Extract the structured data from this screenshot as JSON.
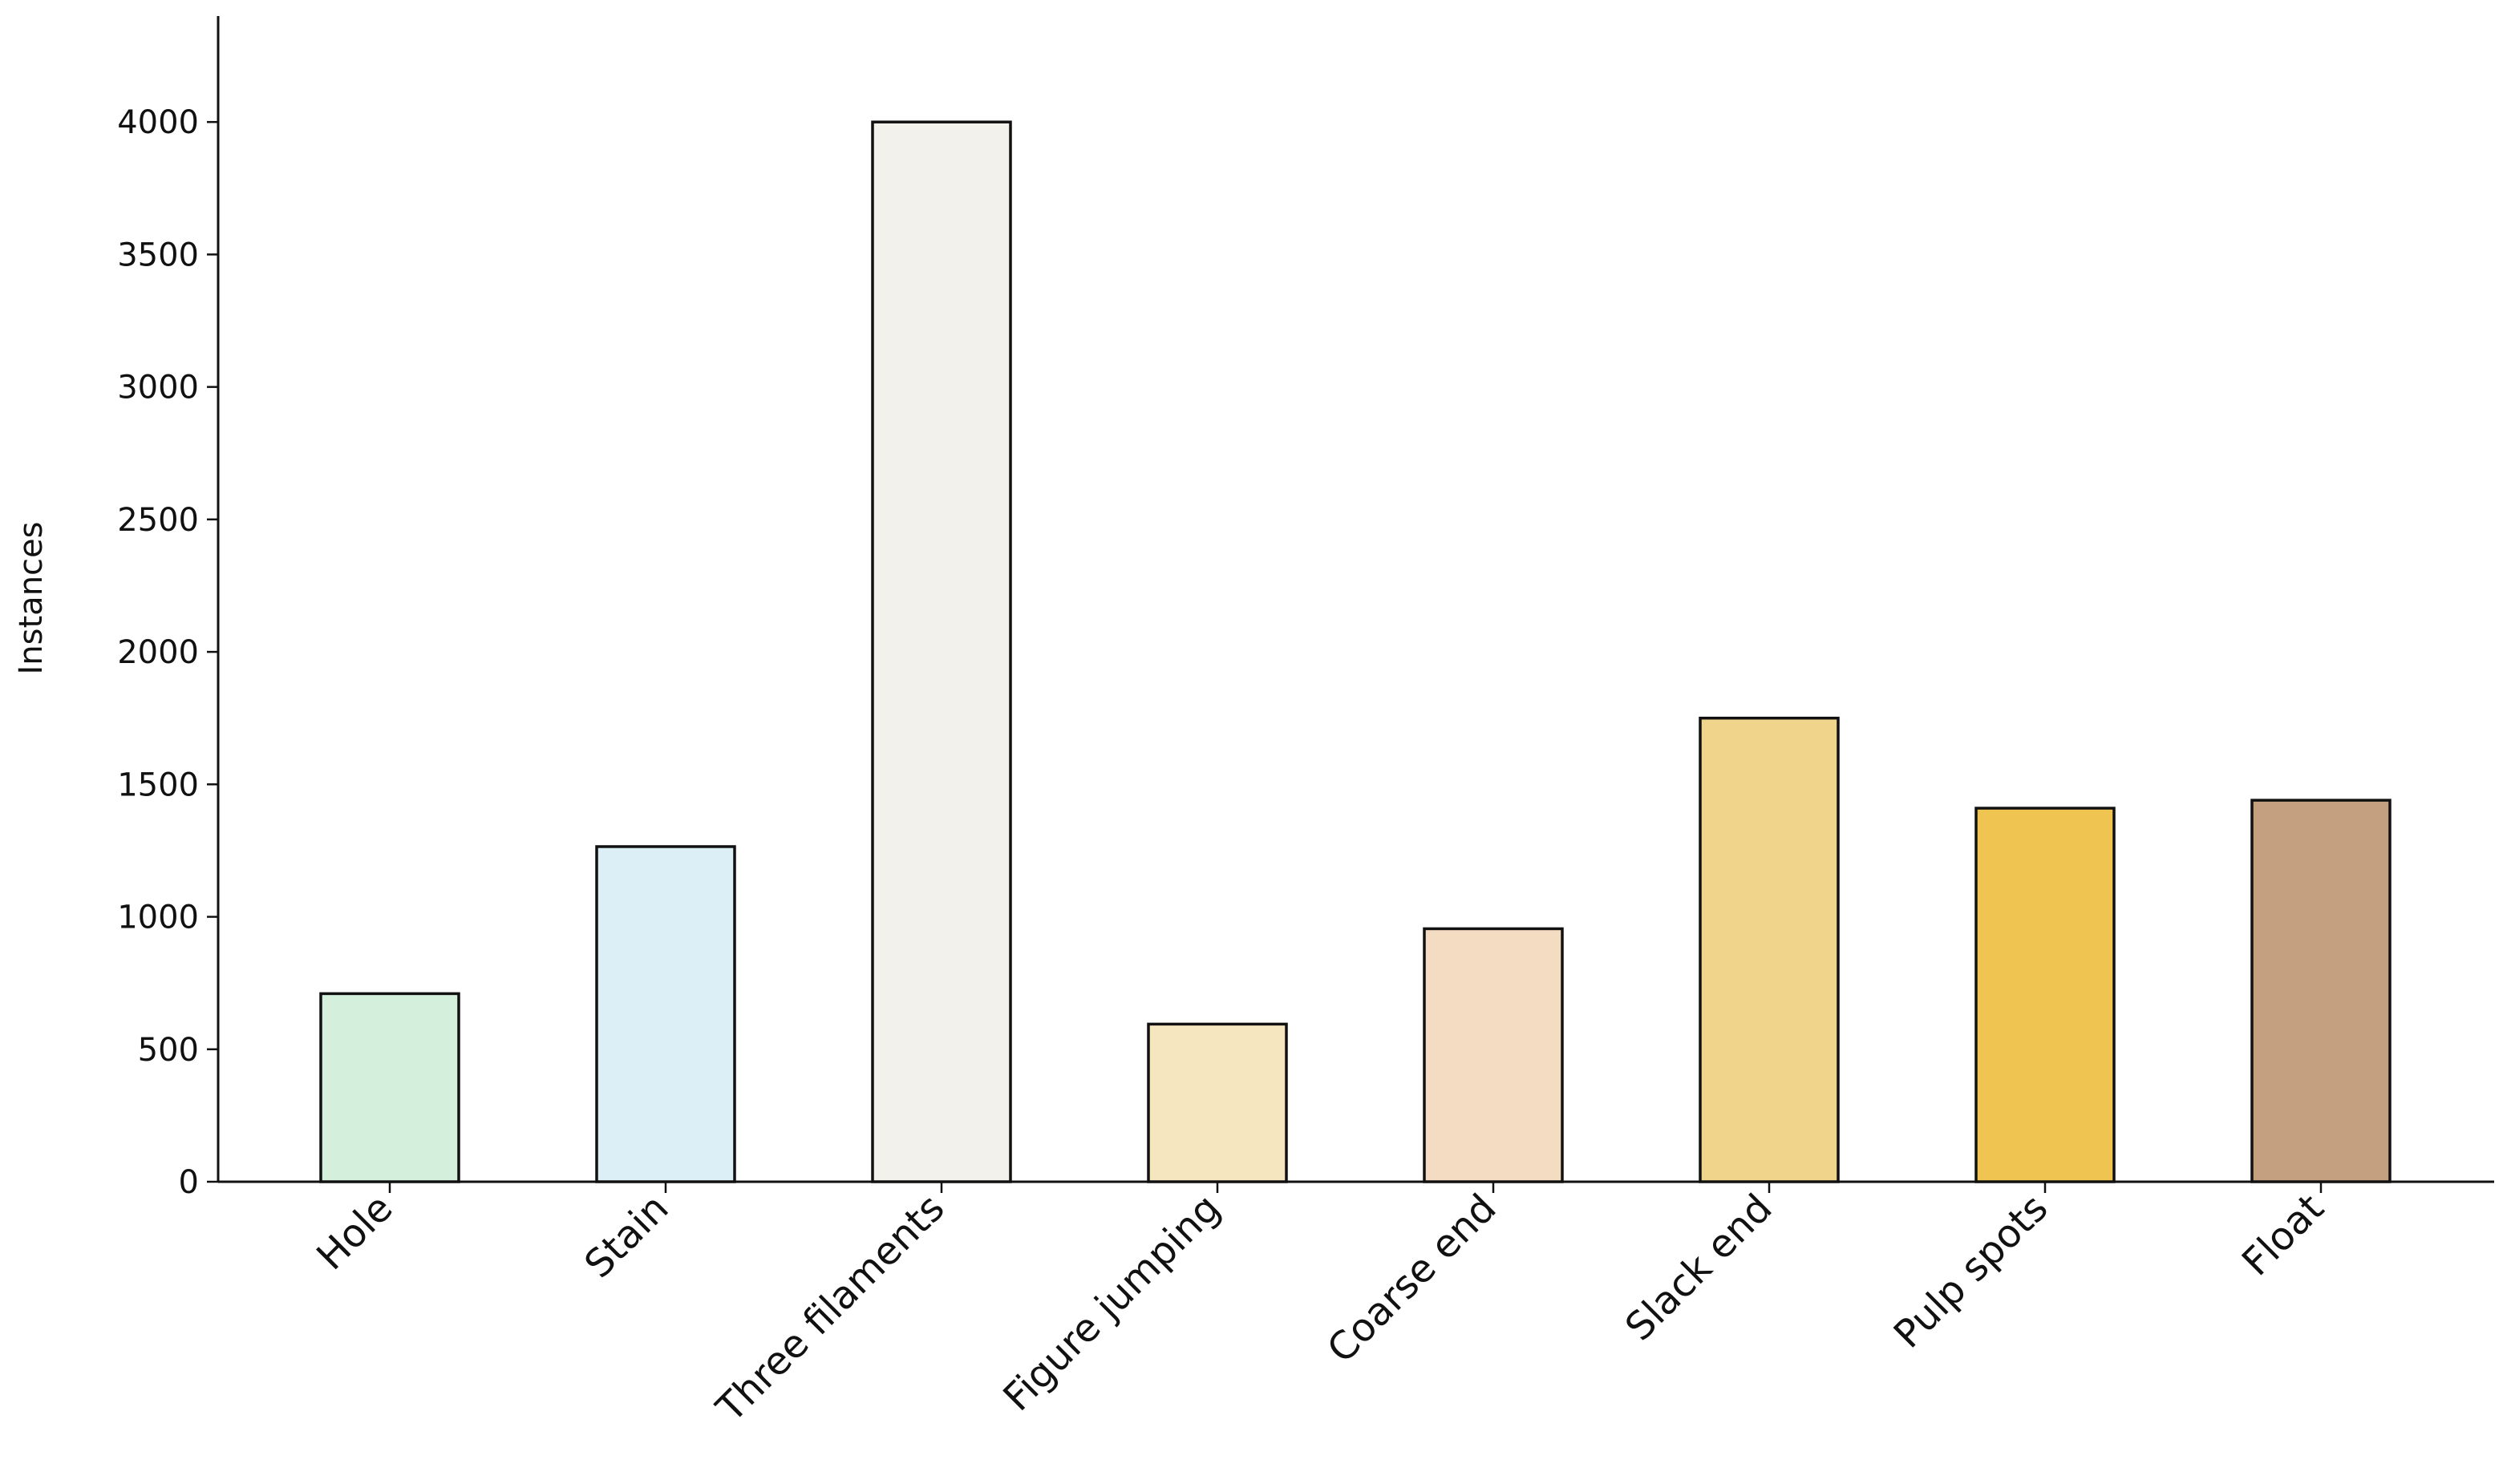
{
  "chart_data": {
    "type": "bar",
    "ylabel": "Instances",
    "categories": [
      "Hole",
      "Stain",
      "Three filaments",
      "Figure jumping",
      "Coarse end",
      "Slack end",
      "Pulp spots",
      "Float"
    ],
    "values": [
      710,
      1265,
      4000,
      595,
      955,
      1750,
      1410,
      1440
    ],
    "colors": [
      "#d4f0dc",
      "#dceef6",
      "#f2f1ec",
      "#f6e6c0",
      "#f4dcc2",
      "#f0d48c",
      "#f0c450",
      "#c4a080"
    ],
    "ylim": [
      0,
      4400
    ],
    "yticks": [
      0,
      500,
      1000,
      1500,
      2000,
      2500,
      3000,
      3500,
      4000
    ],
    "grid": false
  }
}
